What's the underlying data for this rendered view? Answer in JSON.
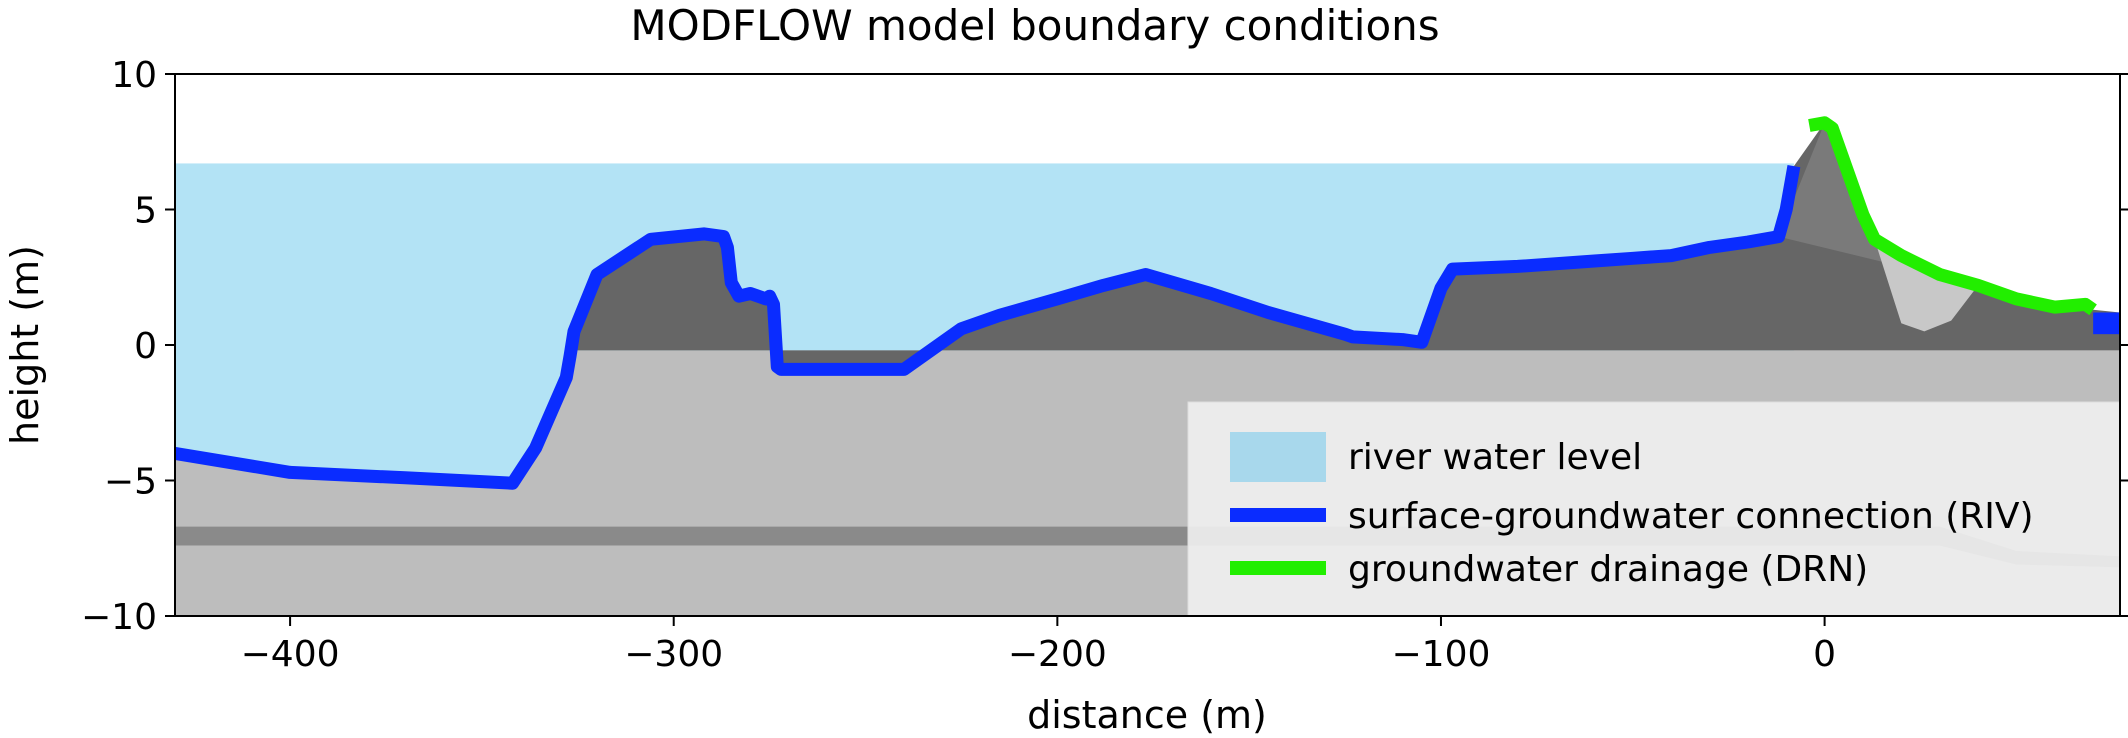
{
  "chart_data": {
    "type": "area",
    "title": "MODFLOW model boundary conditions",
    "xlabel": "distance (m)",
    "ylabel": "height (m)",
    "xlim": [
      -430,
      77
    ],
    "ylim": [
      -10,
      10
    ],
    "xticks": [
      -400,
      -300,
      -200,
      -100,
      0
    ],
    "yticks": [
      -10,
      -5,
      0,
      5,
      10
    ],
    "xtick_labels": [
      "−400",
      "−300",
      "−200",
      "−100",
      "0"
    ],
    "ytick_labels": [
      "−10",
      "−5",
      "0",
      "5",
      "10"
    ],
    "grid": false,
    "legend_placement": "lower-right",
    "colors": {
      "river": "#b3e3f5",
      "river_legend": "#a8d8ec",
      "riv": "#0a2cff",
      "drn": "#22ee00",
      "layer_light": "#bdbdbd",
      "layer_dark": "#666666",
      "layer_mid": "#7a7a7a",
      "layer_band": "#8a8a8a",
      "layer_lens": "#c8c8c8"
    },
    "river_water_level": 6.7,
    "series": [
      {
        "name": "surface-groundwater connection (RIV)",
        "x": [
          -430,
          -400,
          -370,
          -342,
          -336,
          -328,
          -327,
          -326,
          -320,
          -306,
          -292,
          -287,
          -286,
          -285,
          -283,
          -280,
          -276,
          -275,
          -274,
          -273,
          -272,
          -270,
          -262,
          -240,
          -225,
          -215,
          -200,
          -188,
          -177,
          -160,
          -145,
          -125,
          -123,
          -110,
          -105,
          -100,
          -97,
          -80,
          -60,
          -50,
          -40,
          -30,
          -20,
          -12,
          -10,
          -8
        ],
        "y": [
          -4,
          -4.7,
          -4.9,
          -5.1,
          -3.8,
          -1.2,
          -0.4,
          0.5,
          2.6,
          3.9,
          4.1,
          4,
          3.6,
          2.3,
          1.8,
          1.9,
          1.7,
          1.8,
          1.5,
          -0.8,
          -0.9,
          -0.9,
          -0.9,
          -0.9,
          0.6,
          1.1,
          1.7,
          2.2,
          2.6,
          1.9,
          1.2,
          0.4,
          0.3,
          0.2,
          0.1,
          2.1,
          2.8,
          2.9,
          3.1,
          3.2,
          3.3,
          3.6,
          3.8,
          4.0,
          5.0,
          6.6
        ]
      },
      {
        "name": "groundwater drainage (DRN)",
        "x": [
          -4,
          0,
          2,
          5,
          10,
          13,
          20,
          30,
          40,
          50,
          60,
          68,
          70
        ],
        "y": [
          8.1,
          8.2,
          8.0,
          6.8,
          4.8,
          3.9,
          3.3,
          2.6,
          2.2,
          1.7,
          1.4,
          1.5,
          1.3
        ]
      }
    ],
    "legend": [
      {
        "label": "river water level"
      },
      {
        "label": "surface-groundwater connection (RIV)"
      },
      {
        "label": "groundwater drainage (DRN)"
      }
    ]
  }
}
